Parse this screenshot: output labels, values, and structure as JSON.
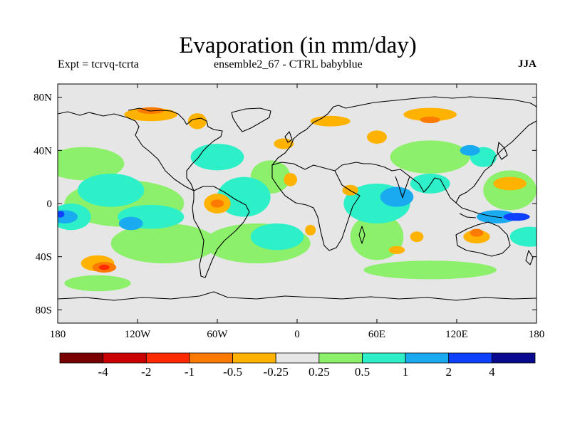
{
  "title": "Evaporation (in mm/day)",
  "subtitle_left": "Expt = tcrvq-tcrta",
  "subtitle_center": "ensemble2_67 - CTRL babyblue",
  "subtitle_right": "JJA",
  "chart_data": {
    "type": "heatmap",
    "projection": "equirectangular",
    "xlim": [
      -180,
      180
    ],
    "ylim": [
      -90,
      90
    ],
    "x_ticks": [
      -180,
      -120,
      -60,
      0,
      60,
      120,
      180
    ],
    "x_tick_labels": [
      "180",
      "120W",
      "60W",
      "0",
      "60E",
      "120E",
      "180"
    ],
    "y_ticks": [
      80,
      40,
      0,
      -40,
      -80
    ],
    "y_tick_labels": [
      "80N",
      "40N",
      "0",
      "40S",
      "80S"
    ],
    "colorbar": {
      "colors": [
        "#7a0000",
        "#cc0000",
        "#ff2a00",
        "#ff7a00",
        "#ffb300",
        "#e6e6e6",
        "#8cf06a",
        "#2ef0c8",
        "#1aaaf0",
        "#1040ff",
        "#0a0a90"
      ],
      "tick_labels": [
        "-4",
        "-2",
        "-1",
        "-0.5",
        "-0.25",
        "0.25",
        "0.5",
        "1",
        "2",
        "4"
      ]
    },
    "regions": [
      {
        "level": 6,
        "lon": -160,
        "lat": 30,
        "w": 60,
        "h": 25
      },
      {
        "level": 6,
        "lon": -130,
        "lat": 0,
        "w": 90,
        "h": 35
      },
      {
        "level": 6,
        "lon": -100,
        "lat": -30,
        "w": 80,
        "h": 30
      },
      {
        "level": 6,
        "lon": -30,
        "lat": -30,
        "w": 80,
        "h": 30
      },
      {
        "level": 6,
        "lon": -20,
        "lat": 20,
        "w": 30,
        "h": 25
      },
      {
        "level": 6,
        "lon": 60,
        "lat": -25,
        "w": 40,
        "h": 35
      },
      {
        "level": 6,
        "lon": 100,
        "lat": 35,
        "w": 60,
        "h": 25
      },
      {
        "level": 6,
        "lon": 160,
        "lat": 10,
        "w": 40,
        "h": 30
      },
      {
        "level": 6,
        "lon": 100,
        "lat": -50,
        "w": 100,
        "h": 14
      },
      {
        "level": 6,
        "lon": -150,
        "lat": -60,
        "w": 50,
        "h": 12
      },
      {
        "level": 7,
        "lon": -140,
        "lat": 10,
        "w": 50,
        "h": 25
      },
      {
        "level": 7,
        "lon": -110,
        "lat": -10,
        "w": 50,
        "h": 18
      },
      {
        "level": 7,
        "lon": -40,
        "lat": 5,
        "w": 40,
        "h": 30
      },
      {
        "level": 7,
        "lon": -15,
        "lat": -25,
        "w": 40,
        "h": 20
      },
      {
        "level": 7,
        "lon": 60,
        "lat": 0,
        "w": 50,
        "h": 30
      },
      {
        "level": 7,
        "lon": 100,
        "lat": 15,
        "w": 30,
        "h": 15
      },
      {
        "level": 7,
        "lon": -60,
        "lat": 35,
        "w": 40,
        "h": 20
      },
      {
        "level": 7,
        "lon": 140,
        "lat": 35,
        "w": 20,
        "h": 15
      },
      {
        "level": 7,
        "lon": -170,
        "lat": -10,
        "w": 30,
        "h": 20
      },
      {
        "level": 7,
        "lon": 175,
        "lat": -25,
        "w": 30,
        "h": 15
      },
      {
        "level": 8,
        "lon": -175,
        "lat": -10,
        "w": 20,
        "h": 10
      },
      {
        "level": 8,
        "lon": 75,
        "lat": 5,
        "w": 25,
        "h": 15
      },
      {
        "level": 8,
        "lon": 150,
        "lat": -10,
        "w": 30,
        "h": 10
      },
      {
        "level": 8,
        "lon": -125,
        "lat": -15,
        "w": 18,
        "h": 10
      },
      {
        "level": 8,
        "lon": 130,
        "lat": 40,
        "w": 15,
        "h": 8
      },
      {
        "level": 9,
        "lon": 165,
        "lat": -10,
        "w": 20,
        "h": 6
      },
      {
        "level": 9,
        "lon": -178,
        "lat": -8,
        "w": 6,
        "h": 5
      },
      {
        "level": 4,
        "lon": -110,
        "lat": 67,
        "w": 40,
        "h": 10
      },
      {
        "level": 4,
        "lon": -75,
        "lat": 62,
        "w": 14,
        "h": 12
      },
      {
        "level": 4,
        "lon": 25,
        "lat": 62,
        "w": 30,
        "h": 8
      },
      {
        "level": 4,
        "lon": 60,
        "lat": 50,
        "w": 15,
        "h": 10
      },
      {
        "level": 4,
        "lon": 100,
        "lat": 67,
        "w": 40,
        "h": 10
      },
      {
        "level": 4,
        "lon": -10,
        "lat": 45,
        "w": 15,
        "h": 8
      },
      {
        "level": 4,
        "lon": -5,
        "lat": 18,
        "w": 10,
        "h": 10
      },
      {
        "level": 4,
        "lon": -60,
        "lat": 0,
        "w": 20,
        "h": 15
      },
      {
        "level": 4,
        "lon": 40,
        "lat": 10,
        "w": 12,
        "h": 8
      },
      {
        "level": 4,
        "lon": 135,
        "lat": -25,
        "w": 20,
        "h": 10
      },
      {
        "level": 4,
        "lon": -150,
        "lat": -45,
        "w": 25,
        "h": 12
      },
      {
        "level": 4,
        "lon": 160,
        "lat": 15,
        "w": 25,
        "h": 10
      },
      {
        "level": 4,
        "lon": 90,
        "lat": -25,
        "w": 10,
        "h": 8
      },
      {
        "level": 4,
        "lon": 10,
        "lat": -20,
        "w": 8,
        "h": 8
      },
      {
        "level": 4,
        "lon": 75,
        "lat": -35,
        "w": 12,
        "h": 6
      },
      {
        "level": 3,
        "lon": -110,
        "lat": 70,
        "w": 20,
        "h": 5
      },
      {
        "level": 3,
        "lon": 100,
        "lat": 63,
        "w": 15,
        "h": 5
      },
      {
        "level": 3,
        "lon": -60,
        "lat": 0,
        "w": 10,
        "h": 6
      },
      {
        "level": 3,
        "lon": -145,
        "lat": -48,
        "w": 18,
        "h": 8
      },
      {
        "level": 3,
        "lon": 135,
        "lat": -22,
        "w": 10,
        "h": 6
      },
      {
        "level": 2,
        "lon": -145,
        "lat": -48,
        "w": 8,
        "h": 4
      }
    ]
  }
}
